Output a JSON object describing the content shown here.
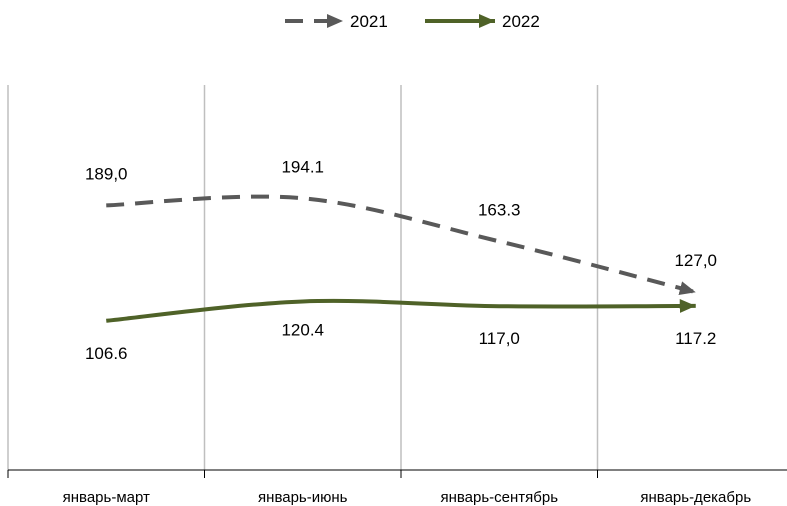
{
  "chart_data": {
    "type": "line",
    "categories": [
      "январь-март",
      "январь-июнь",
      "январь-сентябрь",
      "январь-декабрь"
    ],
    "series": [
      {
        "name": "2021",
        "values": [
          189.0,
          194.1,
          163.3,
          127.0
        ],
        "labels": [
          "189,0",
          "194.1",
          "163.3",
          "127,0"
        ],
        "color": "#595959",
        "style": "dashed"
      },
      {
        "name": "2022",
        "values": [
          106.6,
          120.4,
          117.0,
          117.2
        ],
        "labels": [
          "106.6",
          "120.4",
          "117,0",
          "117.2"
        ],
        "color": "#4f6228",
        "style": "solid"
      }
    ],
    "ylim": [
      0,
      275
    ],
    "grid": "vertical",
    "legend": "top-center",
    "title": "",
    "xlabel": "",
    "ylabel": ""
  }
}
